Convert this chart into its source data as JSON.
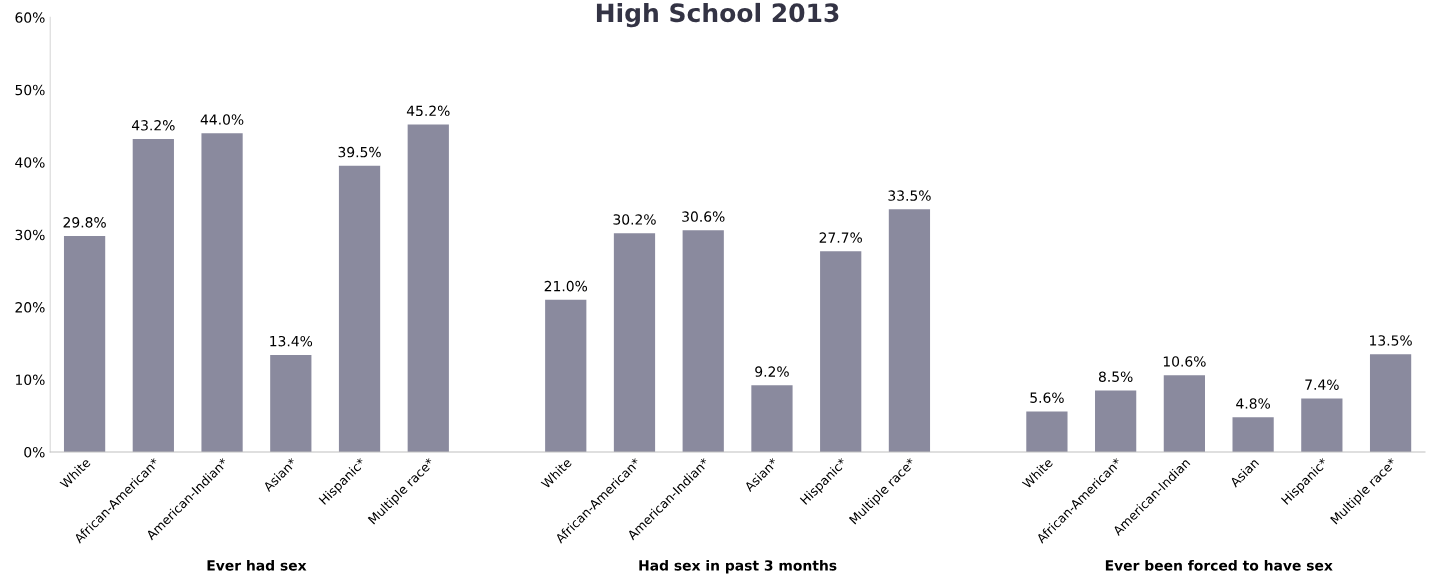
{
  "chart_data": {
    "type": "bar",
    "title": "High School 2013",
    "categories": [
      "White",
      "African-American*",
      "American-Indian*",
      "Asian*",
      "Hispanic*",
      "Multiple race*",
      null,
      "White",
      "African-American*",
      "American-Indian*",
      "Asian*",
      "Hispanic*",
      "Multiple race*",
      null,
      "White",
      "African-American*",
      "American-Indian",
      "Asian",
      "Hispanic*",
      "Multiple race*"
    ],
    "values": [
      29.8,
      43.2,
      44.0,
      13.4,
      39.5,
      45.2,
      null,
      21.0,
      30.2,
      30.6,
      9.2,
      27.7,
      33.5,
      null,
      5.6,
      8.5,
      10.6,
      4.8,
      7.4,
      13.5
    ],
    "value_labels": [
      "29.8%",
      "43.2%",
      "44.0%",
      "13.4%",
      "39.5%",
      "45.2%",
      null,
      "21.0%",
      "30.2%",
      "30.6%",
      "9.2%",
      "27.7%",
      "33.5%",
      null,
      "5.6%",
      "8.5%",
      "10.6%",
      "4.8%",
      "7.4%",
      "13.5%"
    ],
    "color": "#8a8a9e",
    "ylim": [
      0,
      60
    ],
    "yticks": [
      {
        "value": 0,
        "label": "0%"
      },
      {
        "value": 10,
        "label": "10%"
      },
      {
        "value": 20,
        "label": "20%"
      },
      {
        "value": 30,
        "label": "30%"
      },
      {
        "value": 40,
        "label": "40%"
      },
      {
        "value": 50,
        "label": "50%"
      },
      {
        "value": 60,
        "label": "60%"
      }
    ],
    "annotations": [
      "Ever had sex",
      "Had sex in past 3 months",
      "Ever been forced to have sex"
    ],
    "grid": false,
    "legend": false
  }
}
